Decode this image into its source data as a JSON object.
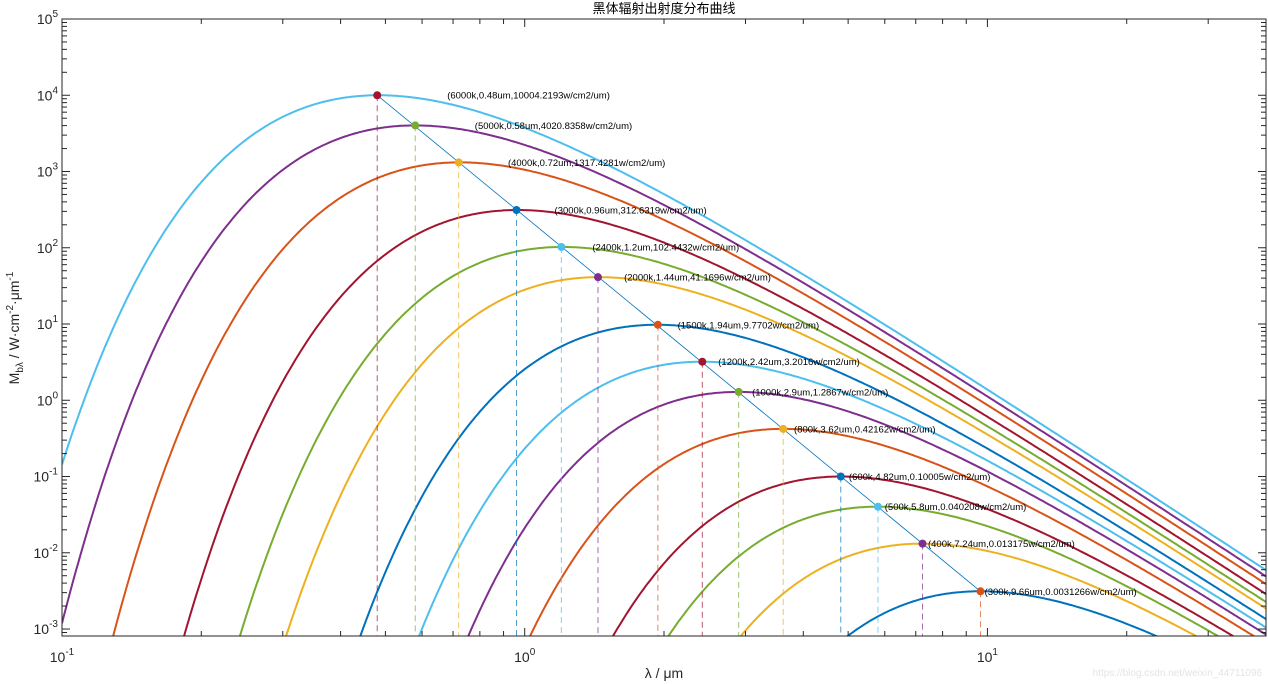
{
  "chart_data": {
    "type": "line",
    "title": "黑体辐射出射度分布曲线",
    "xlabel": "λ / μm",
    "ylabel": {
      "main": "M",
      "sub": "bλ",
      "rest": " / W·cm",
      "sup1": "-2",
      "mid": "·μm",
      "sup2": "-1"
    },
    "xscale": "log",
    "yscale": "log",
    "xlim": [
      0.1,
      40
    ],
    "ylim": [
      0.00081,
      100000
    ],
    "x_ticks": [
      {
        "base": "10",
        "exp": "-1",
        "value": 0.1
      },
      {
        "base": "10",
        "exp": "0",
        "value": 1
      },
      {
        "base": "10",
        "exp": "1",
        "value": 10
      }
    ],
    "y_ticks": [
      {
        "base": "10",
        "exp": "-3",
        "value": 0.001
      },
      {
        "base": "10",
        "exp": "-2",
        "value": 0.01
      },
      {
        "base": "10",
        "exp": "-1",
        "value": 0.1
      },
      {
        "base": "10",
        "exp": "0",
        "value": 1
      },
      {
        "base": "10",
        "exp": "1",
        "value": 10
      },
      {
        "base": "10",
        "exp": "2",
        "value": 100
      },
      {
        "base": "10",
        "exp": "3",
        "value": 1000
      },
      {
        "base": "10",
        "exp": "4",
        "value": 10000
      },
      {
        "base": "10",
        "exp": "5",
        "value": 100000
      }
    ],
    "grid": false,
    "wien_line_color": "#0072BD",
    "series": [
      {
        "temperature_k": 6000,
        "curve_color": "#4DBEEE",
        "marker_color": "#A2142F",
        "peak_um": 0.48,
        "peak_value": 10004.2193,
        "label": "(6000k,0.48um,10004.2193w/cm2/um)"
      },
      {
        "temperature_k": 5000,
        "curve_color": "#7E2F8E",
        "marker_color": "#77AC30",
        "peak_um": 0.58,
        "peak_value": 4020.8358,
        "label": "(5000k,0.58um,4020.8358w/cm2/um)"
      },
      {
        "temperature_k": 4000,
        "curve_color": "#D95319",
        "marker_color": "#EDB120",
        "peak_um": 0.72,
        "peak_value": 1317.4281,
        "label": "(4000k,0.72um,1317.4281w/cm2/um)"
      },
      {
        "temperature_k": 3000,
        "curve_color": "#A2142F",
        "marker_color": "#0072BD",
        "peak_um": 0.96,
        "peak_value": 312.6319,
        "label": "(3000k,0.96um,312.6319w/cm2/um)"
      },
      {
        "temperature_k": 2400,
        "curve_color": "#77AC30",
        "marker_color": "#4DBEEE",
        "peak_um": 1.2,
        "peak_value": 102.4432,
        "label": "(2400k,1.2um,102.4432w/cm2/um)"
      },
      {
        "temperature_k": 2000,
        "curve_color": "#EDB120",
        "marker_color": "#7E2F8E",
        "peak_um": 1.44,
        "peak_value": 41.1696,
        "label": "(2000k,1.44um,41.1696w/cm2/um)"
      },
      {
        "temperature_k": 1500,
        "curve_color": "#0072BD",
        "marker_color": "#D95319",
        "peak_um": 1.94,
        "peak_value": 9.7702,
        "label": "(1500k,1.94um,9.7702w/cm2/um)"
      },
      {
        "temperature_k": 1200,
        "curve_color": "#4DBEEE",
        "marker_color": "#A2142F",
        "peak_um": 2.42,
        "peak_value": 3.2016,
        "label": "(1200k,2.42um,3.2016w/cm2/um)"
      },
      {
        "temperature_k": 1000,
        "curve_color": "#7E2F8E",
        "marker_color": "#77AC30",
        "peak_um": 2.9,
        "peak_value": 1.2867,
        "label": "(1000k,2.9um,1.2867w/cm2/um)"
      },
      {
        "temperature_k": 800,
        "curve_color": "#D95319",
        "marker_color": "#EDB120",
        "peak_um": 3.62,
        "peak_value": 0.42162,
        "label": "(800k,3.62um,0.42162w/cm2/um)"
      },
      {
        "temperature_k": 600,
        "curve_color": "#A2142F",
        "marker_color": "#0072BD",
        "peak_um": 4.82,
        "peak_value": 0.10005,
        "label": "(600k,4.82um,0.10005w/cm2/um)"
      },
      {
        "temperature_k": 500,
        "curve_color": "#77AC30",
        "marker_color": "#4DBEEE",
        "peak_um": 5.8,
        "peak_value": 0.040208,
        "label": "(500k,5.8um,0.040208w/cm2/um)"
      },
      {
        "temperature_k": 400,
        "curve_color": "#EDB120",
        "marker_color": "#7E2F8E",
        "peak_um": 7.24,
        "peak_value": 0.013175,
        "label": "(400k,7.24um,0.013175w/cm2/um)"
      },
      {
        "temperature_k": 300,
        "curve_color": "#0072BD",
        "marker_color": "#D95319",
        "peak_um": 9.66,
        "peak_value": 0.0031266,
        "label": "(300k,9.66um,0.0031266w/cm2/um)"
      }
    ]
  },
  "watermark": "https://blog.csdn.net/weixin_44711096"
}
